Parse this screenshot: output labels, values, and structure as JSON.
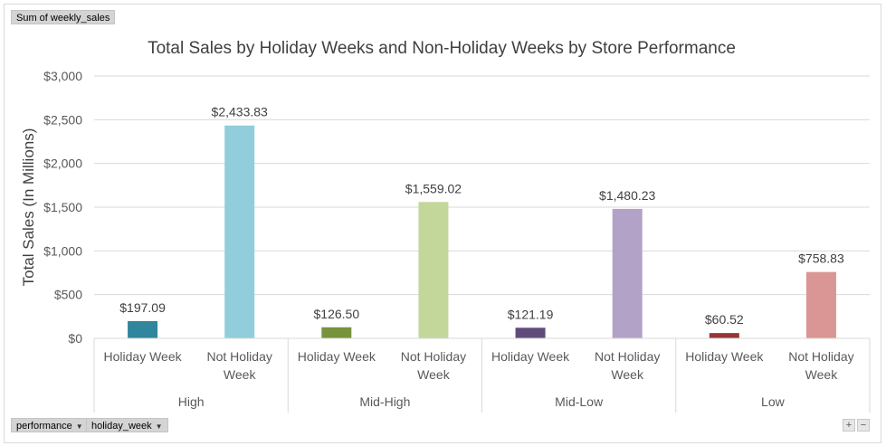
{
  "value_field_button": {
    "label": "Sum of weekly_sales"
  },
  "axis_field_buttons": [
    {
      "label": "performance",
      "icon": "dropdown-arrow-icon"
    },
    {
      "label": "holiday_week",
      "icon": "dropdown-arrow-icon"
    }
  ],
  "zoom_buttons": {
    "expand": "+",
    "collapse": "−"
  },
  "chart_data": {
    "type": "bar",
    "title": "Total Sales by Holiday Weeks and Non-Holiday Weeks by Store Performance",
    "ylabel": "Total Sales (In Millions)",
    "xlabel": "",
    "ylim": [
      0,
      3000
    ],
    "yticks": [
      0,
      500,
      1000,
      1500,
      2000,
      2500,
      3000
    ],
    "ytick_labels": [
      "$0",
      "$500",
      "$1,000",
      "$1,500",
      "$2,000",
      "$2,500",
      "$3,000"
    ],
    "grid": true,
    "groups": [
      {
        "label": "High",
        "bars": [
          {
            "category": "Holiday Week",
            "value": 197.09,
            "data_label": "$197.09",
            "color": "#31859c"
          },
          {
            "category": "Not Holiday Week",
            "value": 2433.83,
            "data_label": "$2,433.83",
            "color": "#92cddc"
          }
        ]
      },
      {
        "label": "Mid-High",
        "bars": [
          {
            "category": "Holiday Week",
            "value": 126.5,
            "data_label": "$126.50",
            "color": "#77933c"
          },
          {
            "category": "Not Holiday Week",
            "value": 1559.02,
            "data_label": "$1,559.02",
            "color": "#c4d79b"
          }
        ]
      },
      {
        "label": "Mid-Low",
        "bars": [
          {
            "category": "Holiday Week",
            "value": 121.19,
            "data_label": "$121.19",
            "color": "#604a7b"
          },
          {
            "category": "Not Holiday Week",
            "value": 1480.23,
            "data_label": "$1,480.23",
            "color": "#b3a2c7"
          }
        ]
      },
      {
        "label": "Low",
        "bars": [
          {
            "category": "Holiday Week",
            "value": 60.52,
            "data_label": "$60.52",
            "color": "#953735"
          },
          {
            "category": "Not Holiday Week",
            "value": 758.83,
            "data_label": "$758.83",
            "color": "#d99694"
          }
        ]
      }
    ]
  }
}
